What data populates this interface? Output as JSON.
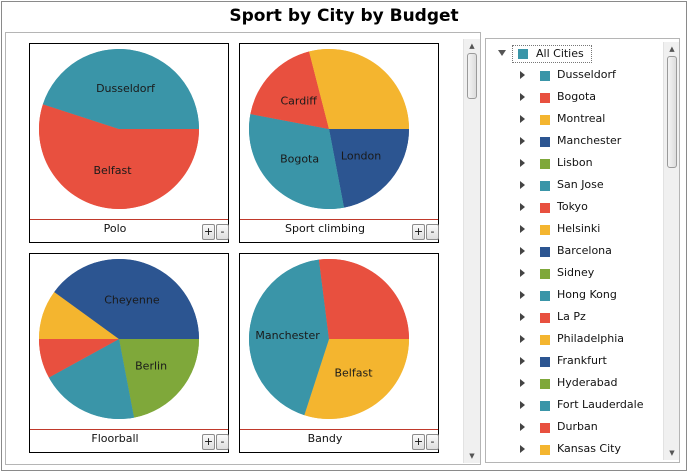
{
  "title": "Sport by City by Budget",
  "chart_data": [
    {
      "type": "pie",
      "title": "Polo",
      "labels": [
        "Belfast",
        "Dusseldorf"
      ],
      "values": [
        55,
        45
      ],
      "colors": [
        "#e8503f",
        "#3a95a8"
      ],
      "shown_labels": [
        "Belfast",
        "Dusseldorf"
      ]
    },
    {
      "type": "pie",
      "title": "Sport climbing",
      "labels": [
        "London",
        "Bogota",
        "Cardiff",
        ""
      ],
      "values": [
        22,
        31,
        18,
        29
      ],
      "colors": [
        "#2c5591",
        "#3a95a8",
        "#e8503f",
        "#f4b52f"
      ],
      "shown_labels": [
        "London",
        "Bogota",
        "Cardiff",
        ""
      ]
    },
    {
      "type": "pie",
      "title": "Floorball",
      "labels": [
        "Berlin",
        "",
        "",
        "",
        "Cheyenne"
      ],
      "values": [
        22,
        20,
        8,
        10,
        40
      ],
      "colors": [
        "#7fa83a",
        "#3a95a8",
        "#e8503f",
        "#f4b52f",
        "#2c5591"
      ],
      "shown_labels": [
        "Berlin",
        "",
        "",
        "",
        "Cheyenne"
      ]
    },
    {
      "type": "pie",
      "title": "Bandy",
      "labels": [
        "Belfast",
        "Manchester",
        ""
      ],
      "values": [
        30,
        43,
        27
      ],
      "colors": [
        "#f4b52f",
        "#3a95a8",
        "#e8503f"
      ],
      "shown_labels": [
        "Belfast",
        "Manchester",
        ""
      ]
    }
  ],
  "buttons": {
    "plus": "+",
    "minus": "-"
  },
  "tree": {
    "root": {
      "label": "All Cities",
      "color": "#3a95a8"
    },
    "items": [
      {
        "label": "Dusseldorf",
        "color": "#3a95a8"
      },
      {
        "label": "Bogota",
        "color": "#e8503f"
      },
      {
        "label": "Montreal",
        "color": "#f4b52f"
      },
      {
        "label": "Manchester",
        "color": "#2c5591"
      },
      {
        "label": "Lisbon",
        "color": "#7fa83a"
      },
      {
        "label": "San Jose",
        "color": "#3a95a8"
      },
      {
        "label": "Tokyo",
        "color": "#e8503f"
      },
      {
        "label": "Helsinki",
        "color": "#f4b52f"
      },
      {
        "label": "Barcelona",
        "color": "#2c5591"
      },
      {
        "label": "Sidney",
        "color": "#7fa83a"
      },
      {
        "label": "Hong Kong",
        "color": "#3a95a8"
      },
      {
        "label": "La Pz",
        "color": "#e8503f"
      },
      {
        "label": "Philadelphia",
        "color": "#f4b52f"
      },
      {
        "label": "Frankfurt",
        "color": "#2c5591"
      },
      {
        "label": "Hyderabad",
        "color": "#7fa83a"
      },
      {
        "label": "Fort Lauderdale",
        "color": "#3a95a8"
      },
      {
        "label": "Durban",
        "color": "#e8503f"
      },
      {
        "label": "Kansas City",
        "color": "#f4b52f"
      }
    ]
  }
}
